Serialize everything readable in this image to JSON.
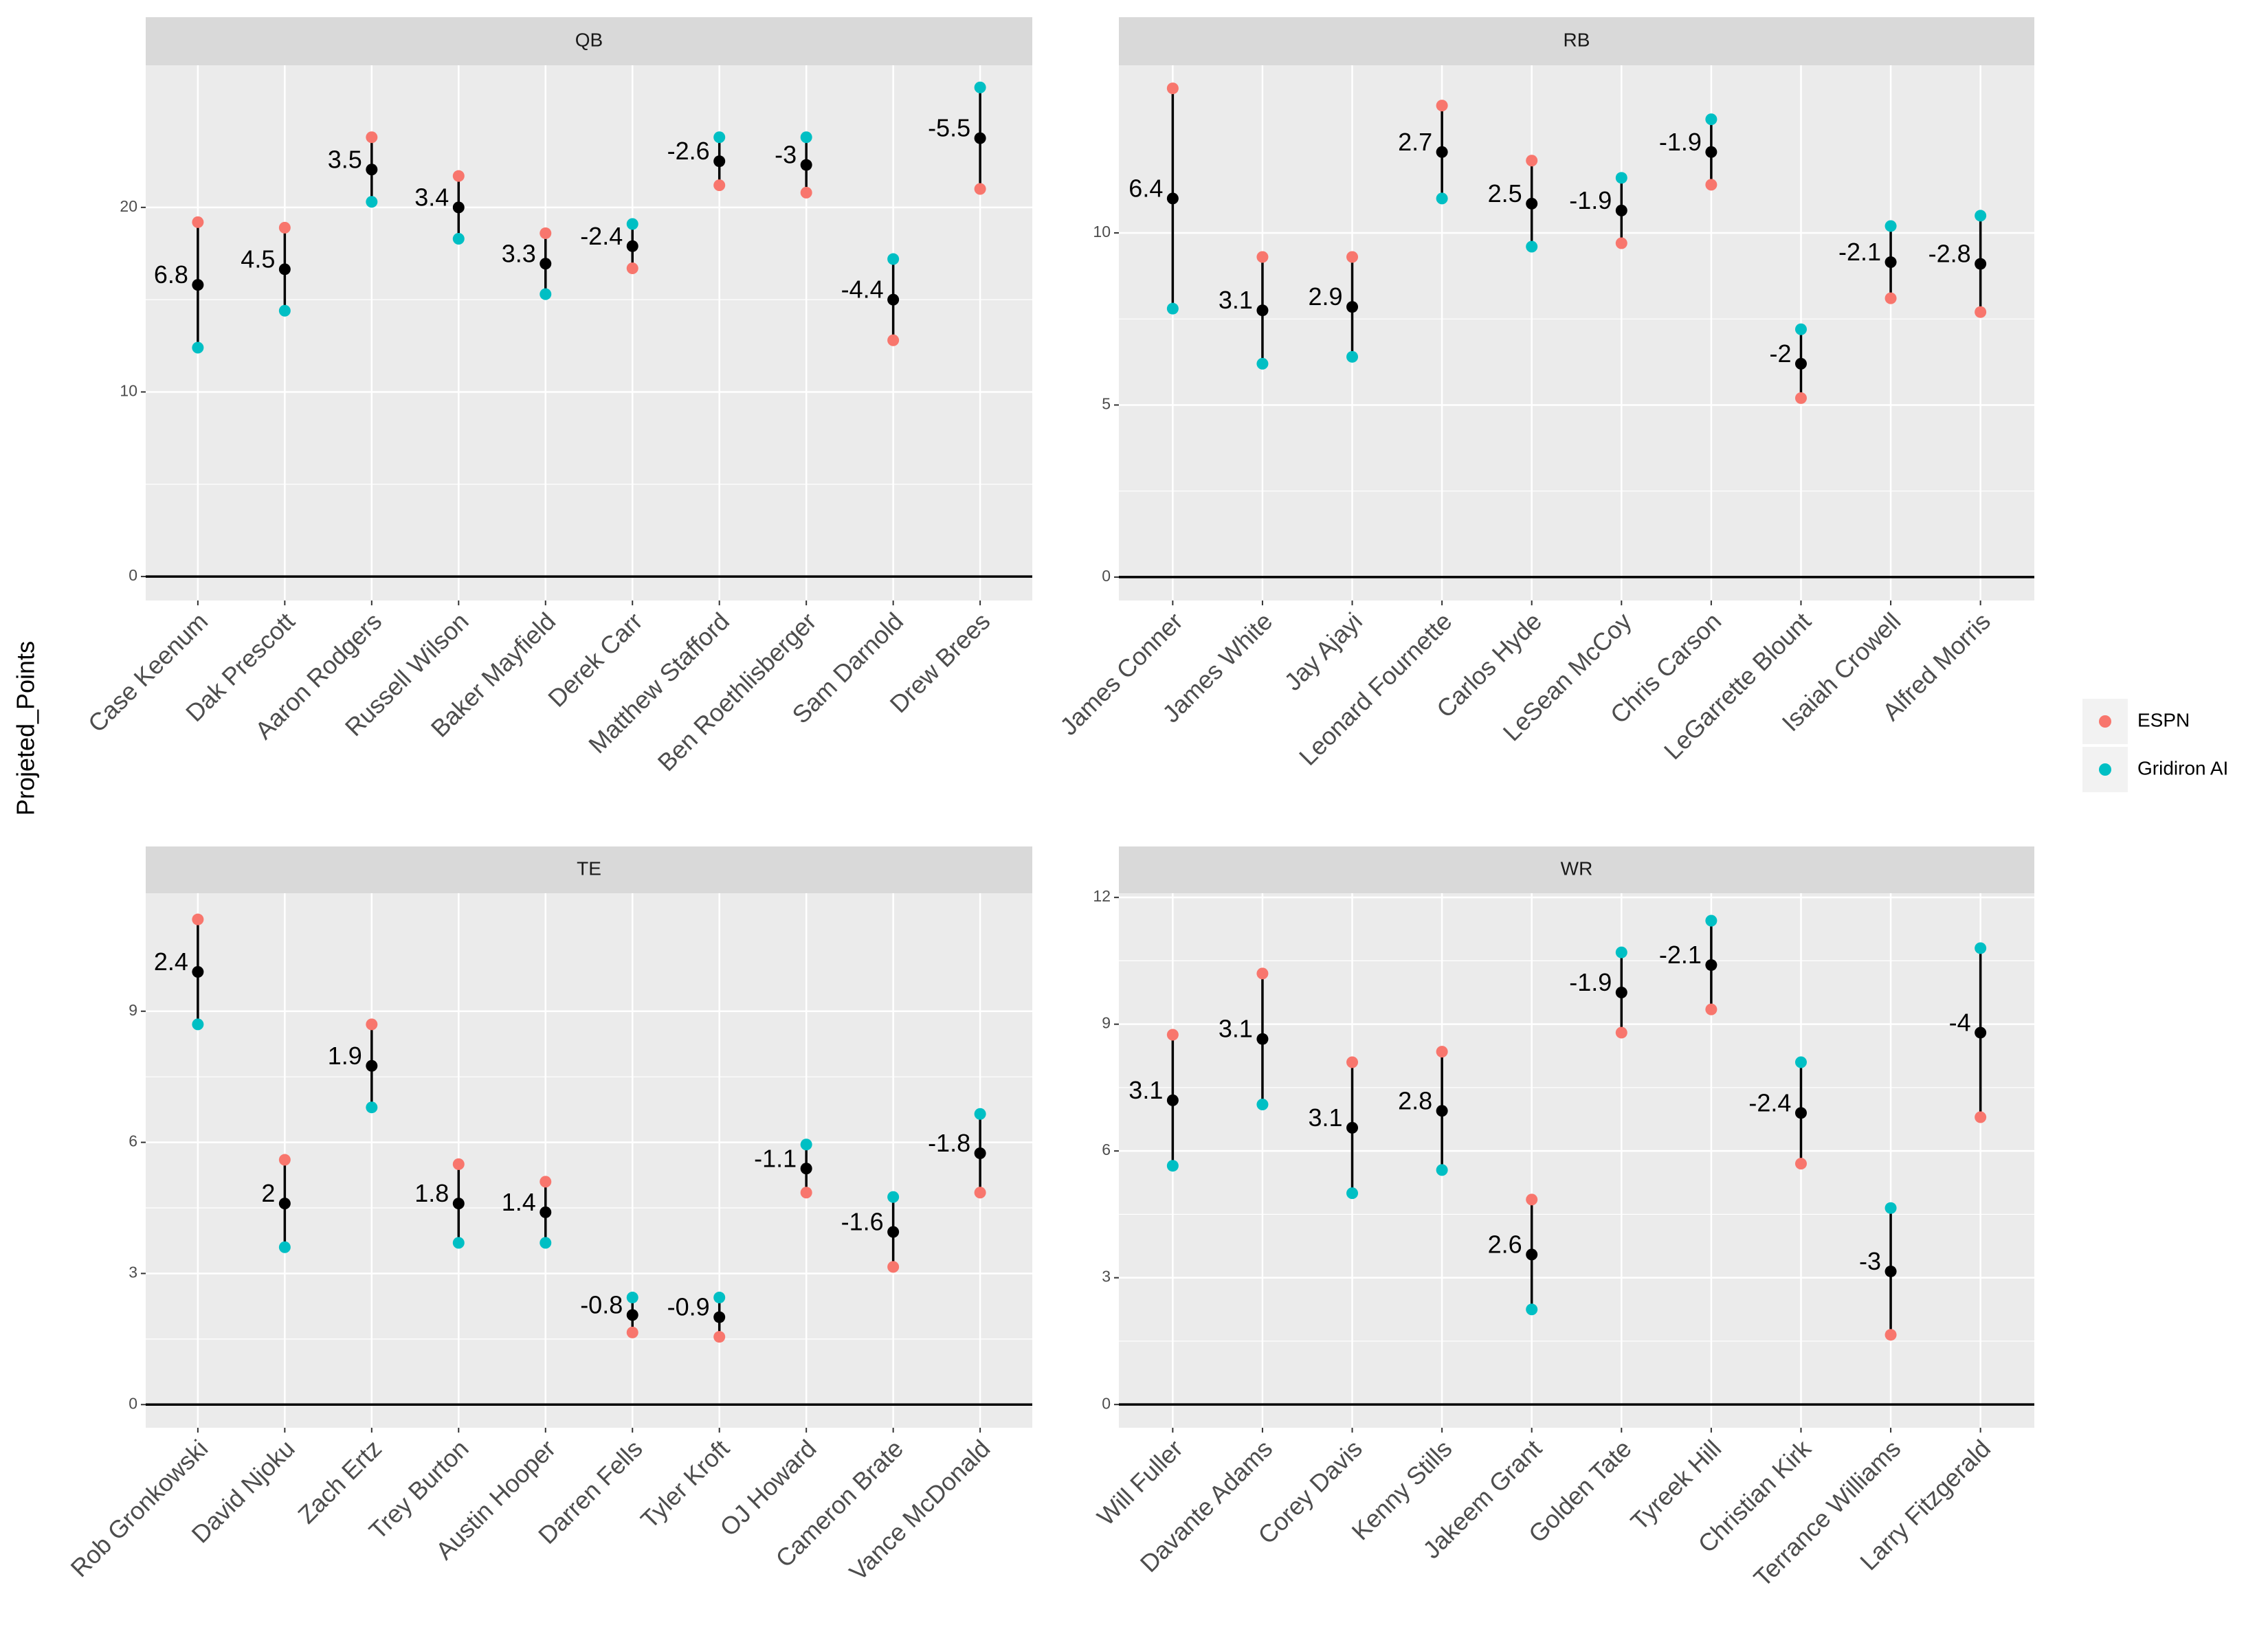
{
  "y_label": "Projeted_Points",
  "chart_data": [
    {
      "type": "dumbbell",
      "title": "QB",
      "categories": [
        "Case Keenum",
        "Dak Prescott",
        "Aaron Rodgers",
        "Russell Wilson",
        "Baker Mayfield",
        "Derek Carr",
        "Matthew Stafford",
        "Ben Roethlisberger",
        "Sam Darnold",
        "Drew Brees"
      ],
      "series": [
        {
          "name": "ESPN",
          "color": "#F8766D",
          "values": [
            19.2,
            18.9,
            23.8,
            21.7,
            18.6,
            16.7,
            21.2,
            20.8,
            12.8,
            21.0
          ]
        },
        {
          "name": "Gridiron AI",
          "color": "#00BFC4",
          "values": [
            12.4,
            14.4,
            20.3,
            18.3,
            15.3,
            19.1,
            23.8,
            23.8,
            17.2,
            26.5
          ]
        }
      ],
      "midpoints": {
        "color": "#000000",
        "values": [
          15.8,
          16.65,
          22.05,
          20.0,
          16.95,
          17.9,
          22.5,
          22.3,
          15.0,
          23.75
        ]
      },
      "differences": [
        6.8,
        4.5,
        3.5,
        3.4,
        3.3,
        -2.4,
        -2.6,
        -3,
        -4.4,
        -5.5
      ],
      "hline": 0,
      "ylim": [
        -1.3,
        27.7
      ],
      "yticks": [
        0,
        10,
        20
      ],
      "grid": true
    },
    {
      "type": "dumbbell",
      "title": "RB",
      "categories": [
        "James Conner",
        "James White",
        "Jay Ajayi",
        "Leonard Fournette",
        "Carlos Hyde",
        "LeSean McCoy",
        "Chris Carson",
        "LeGarrette Blount",
        "Isaiah Crowell",
        "Alfred Morris"
      ],
      "series": [
        {
          "name": "ESPN",
          "color": "#F8766D",
          "values": [
            14.2,
            9.3,
            9.3,
            13.7,
            12.1,
            9.7,
            11.4,
            5.2,
            8.1,
            7.7
          ]
        },
        {
          "name": "Gridiron AI",
          "color": "#00BFC4",
          "values": [
            7.8,
            6.2,
            6.4,
            11.0,
            9.6,
            11.6,
            13.3,
            7.2,
            10.2,
            10.5
          ]
        }
      ],
      "midpoints": {
        "color": "#000000",
        "values": [
          11.0,
          7.75,
          7.85,
          12.35,
          10.85,
          10.65,
          12.35,
          6.2,
          9.15,
          9.1
        ]
      },
      "differences": [
        6.4,
        3.1,
        2.9,
        2.7,
        2.5,
        -1.9,
        -1.9,
        -2,
        -2.1,
        -2.8
      ],
      "hline": 0,
      "ylim": [
        -0.68,
        14.87
      ],
      "yticks": [
        0,
        5,
        10
      ],
      "grid": true
    },
    {
      "type": "dumbbell",
      "title": "TE",
      "categories": [
        "Rob Gronkowski",
        "David Njoku",
        "Zach Ertz",
        "Trey Burton",
        "Austin Hooper",
        "Darren Fells",
        "Tyler Kroft",
        "OJ Howard",
        "Cameron Brate",
        "Vance McDonald"
      ],
      "series": [
        {
          "name": "ESPN",
          "color": "#F8766D",
          "values": [
            11.1,
            5.6,
            8.7,
            5.5,
            5.1,
            1.65,
            1.55,
            4.85,
            3.15,
            4.85
          ]
        },
        {
          "name": "Gridiron AI",
          "color": "#00BFC4",
          "values": [
            8.7,
            3.6,
            6.8,
            3.7,
            3.7,
            2.45,
            2.45,
            5.95,
            4.75,
            6.65
          ]
        }
      ],
      "midpoints": {
        "color": "#000000",
        "values": [
          9.9,
          4.6,
          7.75,
          4.6,
          4.4,
          2.05,
          2.0,
          5.4,
          3.95,
          5.75
        ]
      },
      "differences": [
        2.4,
        2,
        1.9,
        1.8,
        1.4,
        -0.8,
        -0.9,
        -1.1,
        -1.6,
        -1.8
      ],
      "hline": 0,
      "ylim": [
        -0.53,
        11.7
      ],
      "yticks": [
        0,
        3,
        6,
        9
      ],
      "grid": true
    },
    {
      "type": "dumbbell",
      "title": "WR",
      "categories": [
        "Will Fuller",
        "Davante Adams",
        "Corey Davis",
        "Kenny Stills",
        "Jakeem Grant",
        "Golden Tate",
        "Tyreek Hill",
        "Christian Kirk",
        "Terrance Williams",
        "Larry Fitzgerald"
      ],
      "series": [
        {
          "name": "ESPN",
          "color": "#F8766D",
          "values": [
            8.75,
            10.2,
            8.1,
            8.35,
            4.85,
            8.8,
            9.35,
            5.7,
            1.65,
            6.8
          ]
        },
        {
          "name": "Gridiron AI",
          "color": "#00BFC4",
          "values": [
            5.65,
            7.1,
            5.0,
            5.55,
            2.25,
            10.7,
            11.45,
            8.1,
            4.65,
            10.8
          ]
        }
      ],
      "midpoints": {
        "color": "#000000",
        "values": [
          7.2,
          8.65,
          6.55,
          6.95,
          3.55,
          9.75,
          10.4,
          6.9,
          3.15,
          8.8
        ]
      },
      "differences": [
        3.1,
        3.1,
        3.1,
        2.8,
        2.6,
        -1.9,
        -2.1,
        -2.4,
        -3,
        -4
      ],
      "hline": 0,
      "ylim": [
        -0.55,
        12.1
      ],
      "yticks": [
        0,
        3,
        6,
        9,
        12
      ],
      "grid": true
    }
  ]
}
